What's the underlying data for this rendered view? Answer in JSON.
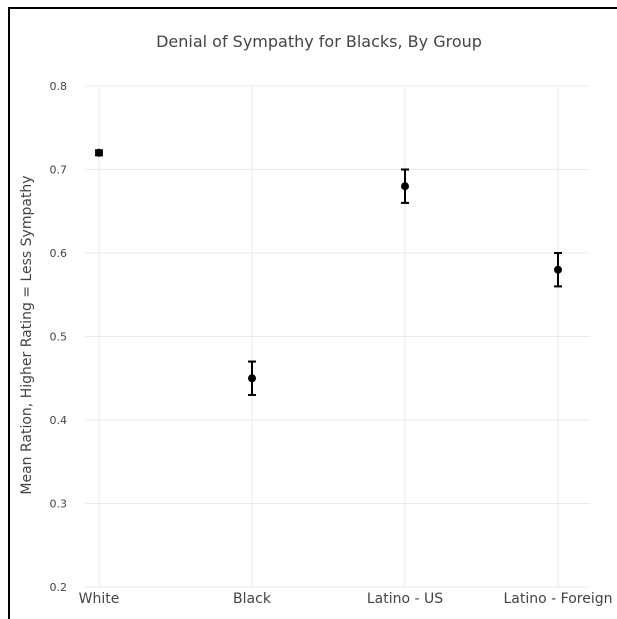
{
  "chart_data": {
    "type": "scatter",
    "title": "Denial of Sympathy for Blacks, By Group",
    "xlabel": "",
    "ylabel": "Mean Ration, Higher  Rating = Less Sympathy",
    "categories": [
      "White",
      "Black",
      "Latino - US",
      "Latino - Foreign"
    ],
    "values": [
      0.72,
      0.45,
      0.68,
      0.58
    ],
    "error_low": [
      0.717,
      0.43,
      0.66,
      0.56
    ],
    "error_high": [
      0.723,
      0.47,
      0.7,
      0.6
    ],
    "yticks": [
      "0.2",
      "0.3",
      "0.4",
      "0.5",
      "0.6",
      "0.7",
      "0.8"
    ],
    "ylim": [
      0.2,
      0.8
    ],
    "grid": true,
    "colors": {
      "points": "#000000",
      "gridlines": "#ebebeb",
      "text": "#444444"
    }
  }
}
